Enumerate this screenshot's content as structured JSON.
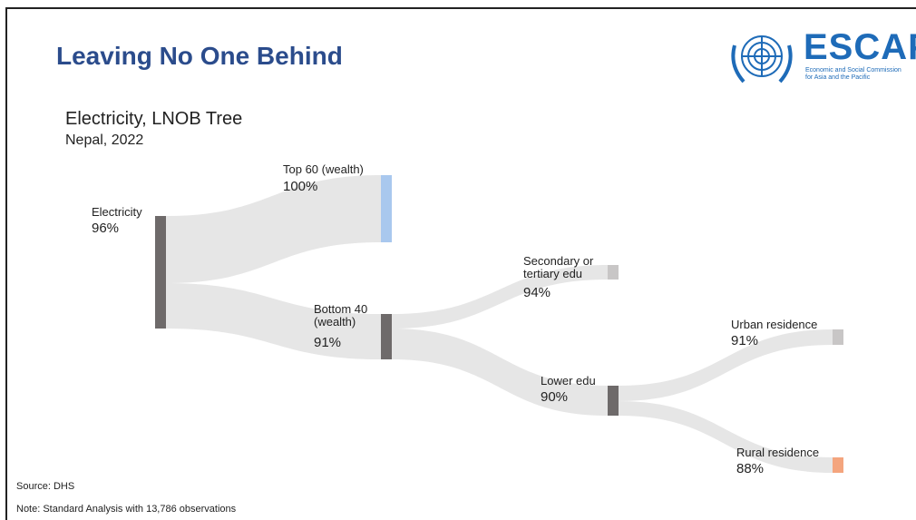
{
  "slide_title": "Leaving No One Behind",
  "chart_title": "Electricity, LNOB Tree",
  "chart_subtitle": "Nepal, 2022",
  "logo": {
    "name": "ESCAP",
    "subtitle_line1": "Economic and Social Commission",
    "subtitle_line2": "for Asia and the Pacific",
    "icon": "un-emblem-icon"
  },
  "colors": {
    "flow": "#e6e6e6",
    "node_dark": "#6e6a6a",
    "node_light": "#c8c6c6",
    "top60": "#a9c8ee",
    "rural": "#f4a57e"
  },
  "nodes": [
    {
      "id": "electricity",
      "label": "Electricity",
      "value": "96%"
    },
    {
      "id": "top60",
      "label": "Top 60 (wealth)",
      "value": "100%"
    },
    {
      "id": "bottom40",
      "label": "Bottom 40\n(wealth)",
      "value": "91%"
    },
    {
      "id": "secondary",
      "label": "Secondary or\ntertiary edu",
      "value": "94%"
    },
    {
      "id": "loweredu",
      "label": "Lower edu",
      "value": "90%"
    },
    {
      "id": "urban",
      "label": "Urban residence",
      "value": "91%"
    },
    {
      "id": "rural",
      "label": "Rural residence",
      "value": "88%"
    }
  ],
  "footer": {
    "source": "Source: DHS",
    "note": "Note: Standard Analysis with 13,786 observations"
  }
}
